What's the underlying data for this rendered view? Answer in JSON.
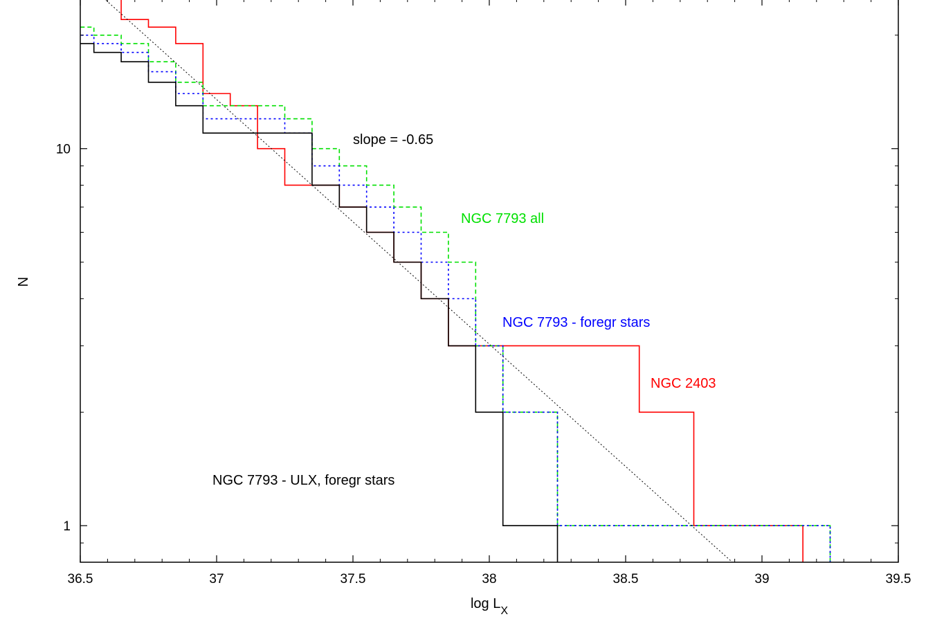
{
  "chart_data": {
    "type": "line",
    "xlabel": "log L",
    "xlabel_sub": "X",
    "ylabel": "N",
    "xlim": [
      36.5,
      39.5
    ],
    "ylim": [
      0.8,
      25.0
    ],
    "y_scale": "log",
    "x_ticks": [
      "36.5",
      "37",
      "37.5",
      "38",
      "38.5",
      "39",
      "39.5"
    ],
    "y_ticks": [
      "1",
      "10"
    ],
    "grid": false,
    "annotations": [
      {
        "name": "slope",
        "text": "slope = -0.65",
        "color": "#000000"
      },
      {
        "name": "ngc7793-all",
        "text": "NGC 7793 all",
        "color": "#00e000"
      },
      {
        "name": "ngc7793-foregr",
        "text": "NGC 7793 - foregr stars",
        "color": "#0000ff"
      },
      {
        "name": "ngc2403",
        "text": "NGC 2403",
        "color": "#ff0000"
      },
      {
        "name": "ngc7793-ulx",
        "text": "NGC 7793 - ULX, foregr stars",
        "color": "#000000"
      }
    ],
    "series": [
      {
        "key": "ngc2403",
        "color": "#ff0000",
        "dash": "solid",
        "x": [
          36.45,
          36.55,
          36.65,
          36.75,
          36.85,
          36.95,
          37.05,
          37.15,
          37.25,
          37.35,
          37.45,
          37.55,
          37.65,
          37.75,
          37.85,
          38.05,
          38.55,
          38.75,
          39.15
        ],
        "y": [
          28,
          26,
          22,
          21,
          19,
          14,
          13,
          10,
          8,
          8,
          7,
          6,
          5,
          4,
          3,
          3,
          2,
          1,
          0.6
        ]
      },
      {
        "key": "ngc7793-all",
        "color": "#00e000",
        "dash": "dashed",
        "x": [
          36.45,
          36.55,
          36.65,
          36.75,
          36.85,
          36.95,
          37.25,
          37.35,
          37.45,
          37.55,
          37.65,
          37.75,
          37.85,
          37.95,
          38.05,
          38.25,
          39.25
        ],
        "y": [
          21,
          20,
          19,
          17,
          15,
          13,
          12,
          10,
          9,
          8,
          7,
          6,
          5,
          3,
          2,
          1,
          0.6
        ]
      },
      {
        "key": "ngc7793-foregr",
        "color": "#0000ff",
        "dash": "dotted",
        "x": [
          36.45,
          36.55,
          36.65,
          36.75,
          36.85,
          36.95,
          37.25,
          37.35,
          37.45,
          37.55,
          37.65,
          37.75,
          37.85,
          37.95,
          38.05,
          38.25,
          39.25
        ],
        "y": [
          20,
          19,
          18,
          16,
          14,
          12,
          11,
          9,
          8,
          7,
          6,
          5,
          4,
          3,
          2,
          1,
          0.6
        ]
      },
      {
        "key": "ngc7793-ulx",
        "color": "#000000",
        "dash": "solid",
        "x": [
          36.45,
          36.55,
          36.65,
          36.75,
          36.85,
          36.95,
          37.35,
          37.45,
          37.55,
          37.65,
          37.75,
          37.85,
          37.95,
          38.05,
          38.25
        ],
        "y": [
          19,
          18,
          17,
          15,
          13,
          11,
          8,
          7,
          6,
          5,
          4,
          3,
          2,
          1,
          0.6
        ]
      },
      {
        "key": "slope-fit",
        "color": "#000000",
        "dash": "fine-dotted",
        "line_x": [
          36.5,
          39.0
        ],
        "line_y": [
          28.5,
          0.68
        ]
      }
    ]
  }
}
